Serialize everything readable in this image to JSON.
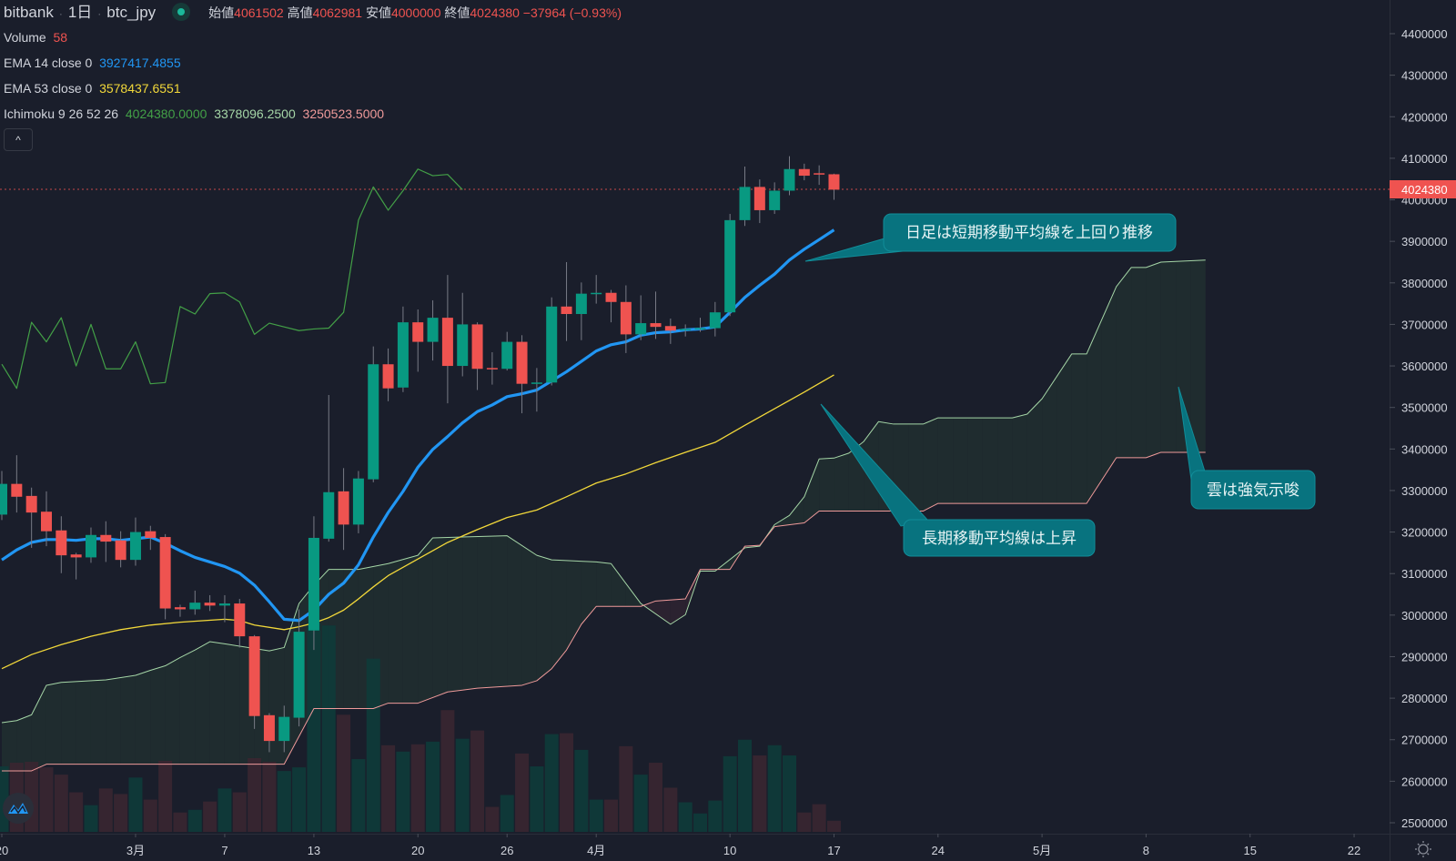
{
  "header": {
    "exchange": "bitbank",
    "interval": "1日",
    "symbol": "btc_jpy",
    "open_label": "始値",
    "open": "4061502",
    "high_label": "高値",
    "high": "4062981",
    "low_label": "安値",
    "low": "4000000",
    "close_label": "終値",
    "close": "4024380",
    "change": "−37964 (−0.93%)"
  },
  "indicators": {
    "volume": {
      "label": "Volume",
      "value": "58"
    },
    "ema14": {
      "label": "EMA 14 close 0",
      "value": "3927417.4855",
      "color": "#2196f3"
    },
    "ema53": {
      "label": "EMA 53 close 0",
      "value": "3578437.6551",
      "color": "#f2d83a"
    },
    "ichimoku": {
      "label": "Ichimoku 9 26 52 26",
      "params": [
        9,
        26,
        52,
        26
      ],
      "lagging_value": "4024380.0000",
      "span_a_value": "3378096.2500",
      "span_b_value": "3250523.5000",
      "lagging_color": "#43a047",
      "span_a_color": "#a5d6a7",
      "span_b_color": "#ef9a9a"
    }
  },
  "collapse_button": "^",
  "colors": {
    "up": "#089981",
    "down": "#ef5350",
    "background": "#1a1e2b",
    "callout": "#08737f"
  },
  "callouts": [
    {
      "text": "日足は短期移動平均線を上回り推移"
    },
    {
      "text": "長期移動平均線は上昇"
    },
    {
      "text": "雲は強気示唆"
    }
  ],
  "chart_data": {
    "type": "candlestick",
    "title": "",
    "ylim": [
      2500000,
      4400000
    ],
    "price_ticks": [
      "4400000",
      "4300000",
      "4200000",
      "4100000",
      "4000000",
      "3900000",
      "3800000",
      "3700000",
      "3600000",
      "3500000",
      "3400000",
      "3300000",
      "3200000",
      "3100000",
      "3000000",
      "2900000",
      "2800000",
      "2700000",
      "2600000",
      "2500000"
    ],
    "last_price_label": "4024380",
    "time_ticks": [
      {
        "date": "2/20",
        "label": "20"
      },
      {
        "date": "3/1",
        "label": "3月"
      },
      {
        "date": "3/7",
        "label": "7"
      },
      {
        "date": "3/13",
        "label": "13"
      },
      {
        "date": "3/20",
        "label": "20"
      },
      {
        "date": "3/26",
        "label": "26"
      },
      {
        "date": "4/1",
        "label": "4月"
      },
      {
        "date": "4/10",
        "label": "10"
      },
      {
        "date": "4/17",
        "label": "17"
      },
      {
        "date": "4/24",
        "label": "24"
      },
      {
        "date": "5/1",
        "label": "5月"
      },
      {
        "date": "5/8",
        "label": "8"
      },
      {
        "date": "5/15",
        "label": "15"
      },
      {
        "date": "5/22",
        "label": "22"
      }
    ],
    "candle_fields": [
      "date",
      "open",
      "high",
      "low",
      "close",
      "volume"
    ],
    "candles": [
      [
        "2/20",
        3242000,
        3347000,
        3229000,
        3316000,
        341
      ],
      [
        "2/21",
        3316000,
        3385000,
        3247000,
        3285000,
        360
      ],
      [
        "2/22",
        3287000,
        3307000,
        3162000,
        3247000,
        365
      ],
      [
        "2/23",
        3249000,
        3298000,
        3166000,
        3202000,
        336
      ],
      [
        "2/24",
        3204000,
        3238000,
        3101000,
        3144000,
        298
      ],
      [
        "2/25",
        3146000,
        3150000,
        3086000,
        3139000,
        206
      ],
      [
        "2/26",
        3139000,
        3211000,
        3126000,
        3193000,
        139
      ],
      [
        "2/27",
        3193000,
        3226000,
        3128000,
        3177000,
        226
      ],
      [
        "2/28",
        3180000,
        3202000,
        3115000,
        3133000,
        197
      ],
      [
        "3/1",
        3133000,
        3235000,
        3119000,
        3200000,
        283
      ],
      [
        "3/2",
        3202000,
        3215000,
        3157000,
        3186000,
        168
      ],
      [
        "3/3",
        3188000,
        3195000,
        2990000,
        3016000,
        370
      ],
      [
        "3/4",
        3019000,
        3025000,
        2996000,
        3014000,
        101
      ],
      [
        "3/5",
        3014000,
        3059000,
        3001000,
        3030000,
        115
      ],
      [
        "3/6",
        3030000,
        3048000,
        3010000,
        3023000,
        158
      ],
      [
        "3/7",
        3023000,
        3048000,
        2983000,
        3028000,
        226
      ],
      [
        "3/8",
        3028000,
        3039000,
        2922000,
        2949000,
        206
      ],
      [
        "3/9",
        2949000,
        2952000,
        2726000,
        2757000,
        384
      ],
      [
        "3/10",
        2759000,
        2764000,
        2670000,
        2697000,
        365
      ],
      [
        "3/11",
        2697000,
        2782000,
        2670000,
        2755000,
        317
      ],
      [
        "3/12",
        2753000,
        3014000,
        2732000,
        2960000,
        336
      ],
      [
        "3/13",
        2963000,
        3238000,
        2916000,
        3186000,
        1085
      ],
      [
        "3/14",
        3184000,
        3530000,
        3177000,
        3296000,
        1075
      ],
      [
        "3/15",
        3298000,
        3354000,
        3157000,
        3218000,
        610
      ],
      [
        "3/16",
        3218000,
        3347000,
        3197000,
        3329000,
        379
      ],
      [
        "3/17",
        3327000,
        3647000,
        3320000,
        3604000,
        902
      ],
      [
        "3/18",
        3604000,
        3642000,
        3515000,
        3546000,
        451
      ],
      [
        "3/19",
        3548000,
        3743000,
        3537000,
        3705000,
        418
      ],
      [
        "3/20",
        3705000,
        3736000,
        3586000,
        3658000,
        456
      ],
      [
        "3/21",
        3658000,
        3758000,
        3613000,
        3716000,
        470
      ],
      [
        "3/22",
        3716000,
        3819000,
        3510000,
        3600000,
        634
      ],
      [
        "3/23",
        3600000,
        3776000,
        3575000,
        3700000,
        485
      ],
      [
        "3/24",
        3700000,
        3705000,
        3542000,
        3593000,
        528
      ],
      [
        "3/25",
        3595000,
        3633000,
        3555000,
        3593000,
        130
      ],
      [
        "3/26",
        3593000,
        3682000,
        3589000,
        3658000,
        192
      ],
      [
        "3/27",
        3658000,
        3674000,
        3486000,
        3557000,
        408
      ],
      [
        "3/28",
        3557000,
        3595000,
        3490000,
        3560000,
        341
      ],
      [
        "3/29",
        3560000,
        3765000,
        3553000,
        3743000,
        509
      ],
      [
        "3/30",
        3743000,
        3850000,
        3660000,
        3725000,
        514
      ],
      [
        "3/31",
        3725000,
        3801000,
        3662000,
        3774000,
        427
      ],
      [
        "4/1",
        3774000,
        3819000,
        3750000,
        3776000,
        168
      ],
      [
        "4/2",
        3776000,
        3783000,
        3705000,
        3754000,
        168
      ],
      [
        "4/3",
        3754000,
        3794000,
        3631000,
        3676000,
        446
      ],
      [
        "4/4",
        3676000,
        3770000,
        3662000,
        3703000,
        298
      ],
      [
        "4/5",
        3703000,
        3779000,
        3665000,
        3694000,
        360
      ],
      [
        "4/6",
        3696000,
        3714000,
        3653000,
        3685000,
        230
      ],
      [
        "4/7",
        3687000,
        3700000,
        3671000,
        3689000,
        154
      ],
      [
        "4/8",
        3689000,
        3716000,
        3682000,
        3691000,
        96
      ],
      [
        "4/9",
        3691000,
        3754000,
        3671000,
        3729000,
        163
      ],
      [
        "4/10",
        3729000,
        3966000,
        3720000,
        3951000,
        394
      ],
      [
        "4/11",
        3951000,
        4080000,
        3937000,
        4031000,
        480
      ],
      [
        "4/12",
        4031000,
        4049000,
        3944000,
        3975000,
        398
      ],
      [
        "4/13",
        3975000,
        4042000,
        3966000,
        4022000,
        451
      ],
      [
        "4/14",
        4022000,
        4105000,
        4011000,
        4074000,
        398
      ],
      [
        "4/15",
        4074000,
        4087000,
        4047000,
        4058000,
        101
      ],
      [
        "4/16",
        4064000,
        4083000,
        4036000,
        4061000,
        144
      ],
      [
        "4/17",
        4061502,
        4062981,
        4000000,
        4024380,
        58
      ]
    ],
    "ema14": [
      3133000,
      3157000,
      3175000,
      3182000,
      3182000,
      3180000,
      3184000,
      3184000,
      3180000,
      3184000,
      3188000,
      3173000,
      3155000,
      3139000,
      3128000,
      3117000,
      3101000,
      3072000,
      3032000,
      2990000,
      2987000,
      3012000,
      3050000,
      3077000,
      3121000,
      3188000,
      3247000,
      3298000,
      3356000,
      3399000,
      3430000,
      3463000,
      3490000,
      3506000,
      3526000,
      3533000,
      3542000,
      3564000,
      3586000,
      3611000,
      3636000,
      3651000,
      3658000,
      3674000,
      3680000,
      3682000,
      3687000,
      3689000,
      3694000,
      3729000,
      3765000,
      3794000,
      3821000,
      3855000,
      3881000,
      3904000,
      3927417.4855
    ],
    "ema53": [
      [
        "2/20",
        2871000
      ],
      [
        "2/22",
        2905000
      ],
      [
        "2/24",
        2929000
      ],
      [
        "2/26",
        2949000
      ],
      [
        "2/28",
        2965000
      ],
      [
        "3/2",
        2976000
      ],
      [
        "3/4",
        2983000
      ],
      [
        "3/7",
        2990000
      ],
      [
        "3/8",
        2987000
      ],
      [
        "3/9",
        2976000
      ],
      [
        "3/11",
        2965000
      ],
      [
        "3/12",
        2972000
      ],
      [
        "3/13",
        2981000
      ],
      [
        "3/14",
        2994000
      ],
      [
        "3/15",
        3012000
      ],
      [
        "3/16",
        3039000
      ],
      [
        "3/17",
        3068000
      ],
      [
        "3/18",
        3095000
      ],
      [
        "3/20",
        3135000
      ],
      [
        "3/22",
        3175000
      ],
      [
        "3/24",
        3206000
      ],
      [
        "3/26",
        3235000
      ],
      [
        "3/28",
        3253000
      ],
      [
        "3/30",
        3285000
      ],
      [
        "4/1",
        3318000
      ],
      [
        "4/3",
        3340000
      ],
      [
        "4/5",
        3367000
      ],
      [
        "4/7",
        3392000
      ],
      [
        "4/9",
        3416000
      ],
      [
        "4/11",
        3457000
      ],
      [
        "4/13",
        3497000
      ],
      [
        "4/15",
        3537000
      ],
      [
        "4/17",
        3578437.6551
      ]
    ],
    "span_a": [
      [
        "2/20",
        2741000
      ],
      [
        "2/21",
        2746000
      ],
      [
        "2/22",
        2760000
      ],
      [
        "2/23",
        2831000
      ],
      [
        "2/24",
        2838000
      ],
      [
        "2/27",
        2844000
      ],
      [
        "3/1",
        2855000
      ],
      [
        "3/2",
        2867000
      ],
      [
        "3/3",
        2878000
      ],
      [
        "3/4",
        2898000
      ],
      [
        "3/5",
        2916000
      ],
      [
        "3/6",
        2936000
      ],
      [
        "3/7",
        2931000
      ],
      [
        "3/10",
        2914000
      ],
      [
        "3/11",
        2922000
      ],
      [
        "3/12",
        3028000
      ],
      [
        "3/13",
        3072000
      ],
      [
        "3/14",
        3110000
      ],
      [
        "3/16",
        3110000
      ],
      [
        "3/18",
        3124000
      ],
      [
        "3/20",
        3144000
      ],
      [
        "3/21",
        3186000
      ],
      [
        "3/26",
        3191000
      ],
      [
        "3/28",
        3144000
      ],
      [
        "3/29",
        3133000
      ],
      [
        "4/1",
        3128000
      ],
      [
        "4/2",
        3124000
      ],
      [
        "4/4",
        3028000
      ],
      [
        "4/6",
        2978000
      ],
      [
        "4/7",
        3001000
      ],
      [
        "4/8",
        3106000
      ],
      [
        "4/9",
        3106000
      ],
      [
        "4/11",
        3162000
      ],
      [
        "4/12",
        3166000
      ],
      [
        "4/13",
        3218000
      ],
      [
        "4/14",
        3240000
      ],
      [
        "4/15",
        3285000
      ],
      [
        "4/16",
        3376000
      ],
      [
        "4/17",
        3378096.25
      ],
      [
        "4/18",
        3390000
      ],
      [
        "4/19",
        3418000
      ],
      [
        "4/20",
        3466000
      ],
      [
        "4/21",
        3460000
      ],
      [
        "4/23",
        3460000
      ],
      [
        "4/24",
        3475000
      ],
      [
        "4/29",
        3475000
      ],
      [
        "4/30",
        3484000
      ],
      [
        "5/1",
        3521000
      ],
      [
        "5/3",
        3629000
      ],
      [
        "5/4",
        3629000
      ],
      [
        "5/6",
        3791000
      ],
      [
        "5/7",
        3837000
      ],
      [
        "5/8",
        3837000
      ],
      [
        "5/9",
        3850000
      ],
      [
        "5/12",
        3855000
      ]
    ],
    "span_b": [
      [
        "2/20",
        2625000
      ],
      [
        "2/22",
        2625000
      ],
      [
        "2/23",
        2641000
      ],
      [
        "3/11",
        2641000
      ],
      [
        "3/13",
        2775000
      ],
      [
        "3/17",
        2775000
      ],
      [
        "3/18",
        2788000
      ],
      [
        "3/20",
        2788000
      ],
      [
        "3/22",
        2815000
      ],
      [
        "3/24",
        2824000
      ],
      [
        "3/27",
        2831000
      ],
      [
        "3/28",
        2842000
      ],
      [
        "3/29",
        2871000
      ],
      [
        "3/30",
        2916000
      ],
      [
        "3/31",
        2978000
      ],
      [
        "4/1",
        3021000
      ],
      [
        "4/4",
        3021000
      ],
      [
        "4/5",
        3034000
      ],
      [
        "4/7",
        3039000
      ],
      [
        "4/8",
        3110000
      ],
      [
        "4/10",
        3110000
      ],
      [
        "4/11",
        3166000
      ],
      [
        "4/12",
        3168000
      ],
      [
        "4/13",
        3213000
      ],
      [
        "4/15",
        3222000
      ],
      [
        "4/16",
        3250523.5
      ],
      [
        "4/23",
        3250523.5
      ],
      [
        "4/24",
        3269000
      ],
      [
        "5/4",
        3269000
      ],
      [
        "5/6",
        3379000
      ],
      [
        "5/8",
        3379000
      ],
      [
        "5/9",
        3392000
      ],
      [
        "5/12",
        3392000
      ]
    ]
  }
}
